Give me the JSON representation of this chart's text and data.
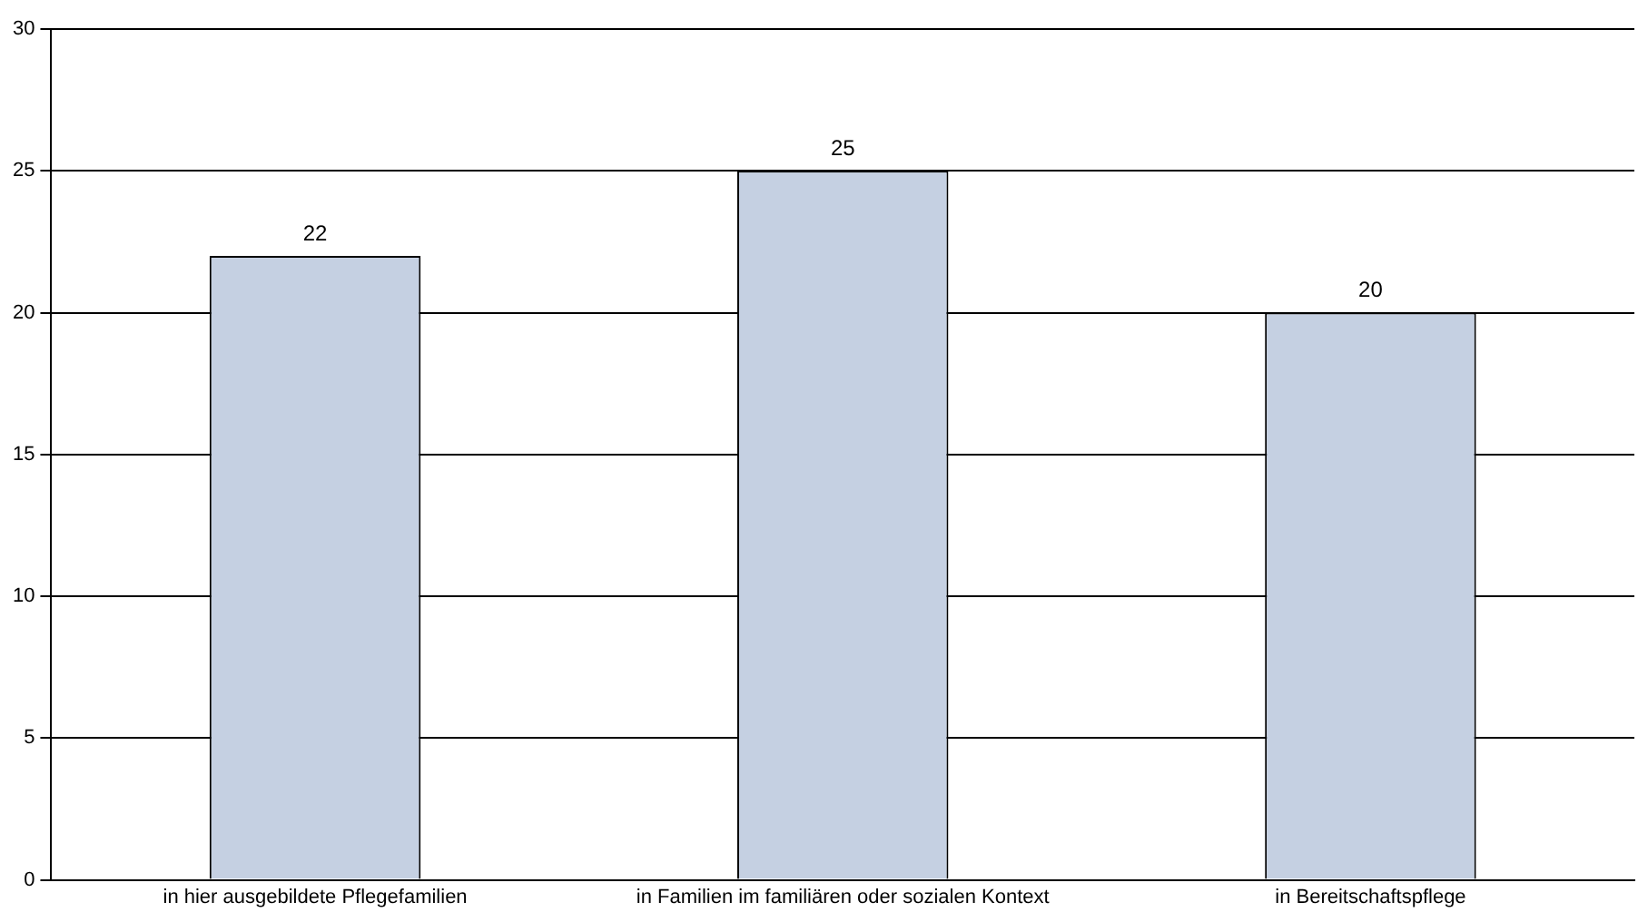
{
  "chart_data": {
    "type": "bar",
    "categories": [
      "in hier ausgebildete Pflegefamilien",
      "in Familien im familiären oder sozialen Kontext",
      "in Bereitschaftspflege"
    ],
    "values": [
      22,
      25,
      20
    ],
    "color": "#c5d0e2",
    "ylim": [
      0,
      30
    ],
    "yticks": [
      0,
      5,
      10,
      15,
      20,
      25,
      30
    ],
    "grid": "y",
    "data_labels": true,
    "legend": false
  }
}
